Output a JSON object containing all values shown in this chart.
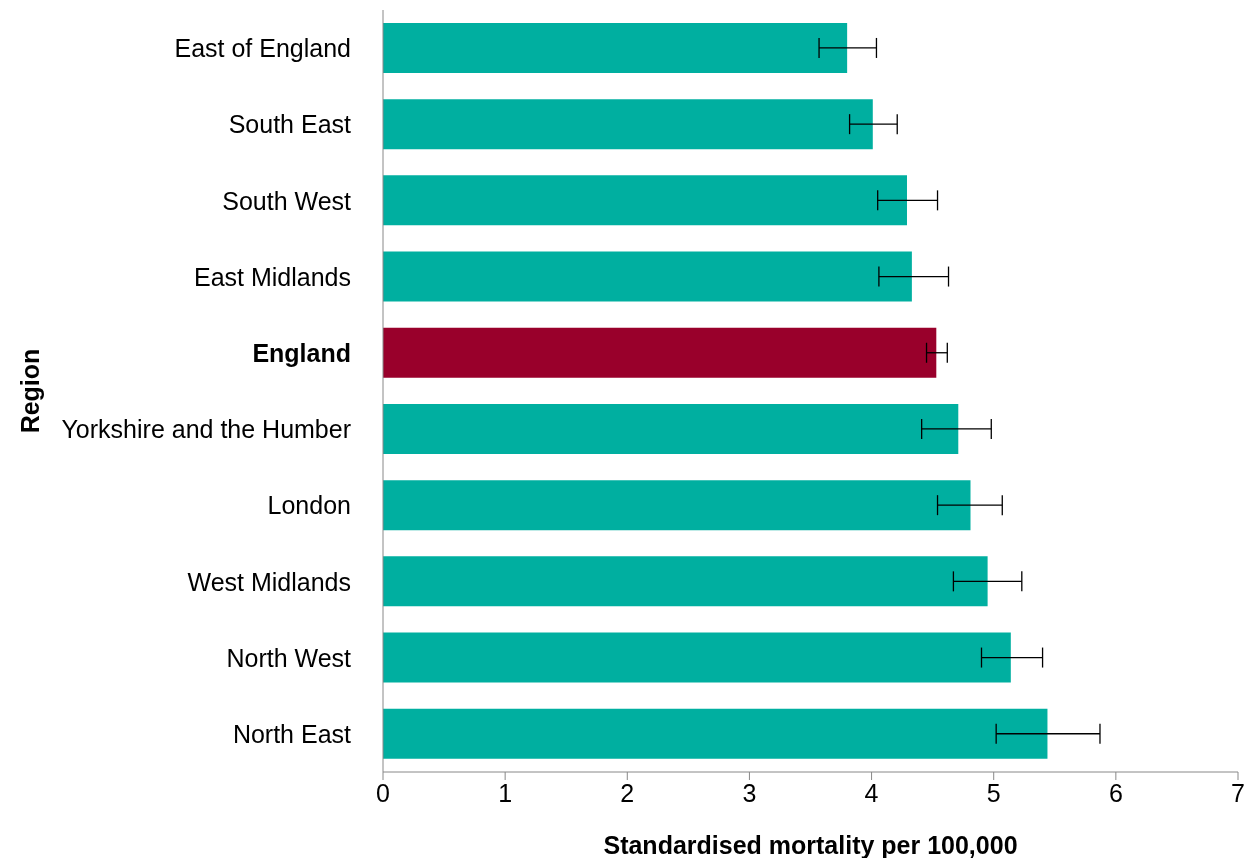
{
  "chart_data": {
    "type": "bar",
    "orientation": "horizontal",
    "xlabel": "Standardised mortality per 100,000",
    "ylabel": "Region",
    "categories": [
      "East of England",
      "South East",
      "South West",
      "East Midlands",
      "England",
      "Yorkshire and the Humber",
      "London",
      "West Midlands",
      "North West",
      "North East"
    ],
    "values": [
      3.8,
      4.01,
      4.29,
      4.33,
      4.53,
      4.71,
      4.81,
      4.95,
      5.14,
      5.44
    ],
    "colors": [
      "#00afa0",
      "#00afa0",
      "#00afa0",
      "#00afa0",
      "#99002b",
      "#00afa0",
      "#00afa0",
      "#00afa0",
      "#00afa0",
      "#00afa0"
    ],
    "errors": [
      [
        3.57,
        4.04
      ],
      [
        3.82,
        4.21
      ],
      [
        4.05,
        4.54
      ],
      [
        4.06,
        4.63
      ],
      [
        4.45,
        4.62
      ],
      [
        4.41,
        4.98
      ],
      [
        4.54,
        5.07
      ],
      [
        4.67,
        5.23
      ],
      [
        4.9,
        5.4
      ],
      [
        5.02,
        5.87
      ]
    ],
    "xlim": [
      0,
      7
    ],
    "xticks": [
      0,
      1,
      2,
      3,
      4,
      5,
      6,
      7
    ],
    "grid": false,
    "legend": false
  }
}
